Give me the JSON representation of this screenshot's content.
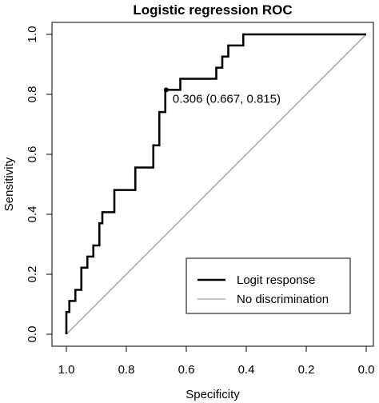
{
  "chart_data": {
    "type": "line",
    "title": "Logistic regression ROC",
    "xlabel": "Specificity",
    "ylabel": "Sensitivity",
    "xlim": [
      1.0,
      0.0
    ],
    "ylim": [
      0.0,
      1.0
    ],
    "x_reversed": true,
    "grid": false,
    "legend_position": "bottom-right",
    "x_ticks": [
      {
        "value": 1.0,
        "label": "1.0"
      },
      {
        "value": 0.8,
        "label": "0.8"
      },
      {
        "value": 0.6,
        "label": "0.6"
      },
      {
        "value": 0.4,
        "label": "0.4"
      },
      {
        "value": 0.2,
        "label": "0.2"
      },
      {
        "value": 0.0,
        "label": "0.0"
      }
    ],
    "y_ticks": [
      {
        "value": 0.0,
        "label": "0.0"
      },
      {
        "value": 0.2,
        "label": "0.2"
      },
      {
        "value": 0.4,
        "label": "0.4"
      },
      {
        "value": 0.6,
        "label": "0.6"
      },
      {
        "value": 0.8,
        "label": "0.8"
      },
      {
        "value": 1.0,
        "label": "1.0"
      }
    ],
    "series": [
      {
        "name": "Logit response",
        "style": "solid-thick",
        "color": "#000000",
        "specificity": [
          1.0,
          1.0,
          0.99,
          0.99,
          0.97,
          0.97,
          0.95,
          0.95,
          0.93,
          0.93,
          0.91,
          0.91,
          0.89,
          0.89,
          0.88,
          0.88,
          0.86,
          0.86,
          0.84,
          0.84,
          0.83,
          0.83,
          0.77,
          0.77,
          0.71,
          0.71,
          0.69,
          0.69,
          0.67,
          0.67,
          0.62,
          0.62,
          0.5,
          0.5,
          0.48,
          0.48,
          0.46,
          0.46,
          0.41,
          0.41,
          0.0
        ],
        "sensitivity": [
          0.0,
          0.074,
          0.074,
          0.111,
          0.111,
          0.148,
          0.148,
          0.222,
          0.222,
          0.259,
          0.259,
          0.296,
          0.296,
          0.37,
          0.37,
          0.407,
          0.407,
          0.407,
          0.407,
          0.481,
          0.481,
          0.481,
          0.481,
          0.556,
          0.556,
          0.63,
          0.63,
          0.741,
          0.741,
          0.815,
          0.815,
          0.852,
          0.852,
          0.889,
          0.889,
          0.926,
          0.926,
          0.963,
          0.963,
          1.0,
          1.0
        ]
      },
      {
        "name": "No discrimination",
        "style": "solid-thin",
        "color": "#888888",
        "specificity": [
          1.0,
          0.0
        ],
        "sensitivity": [
          0.0,
          1.0
        ]
      }
    ],
    "annotations": [
      {
        "label": "0.306 (0.667, 0.815)",
        "specificity": 0.667,
        "sensitivity": 0.815
      }
    ]
  }
}
